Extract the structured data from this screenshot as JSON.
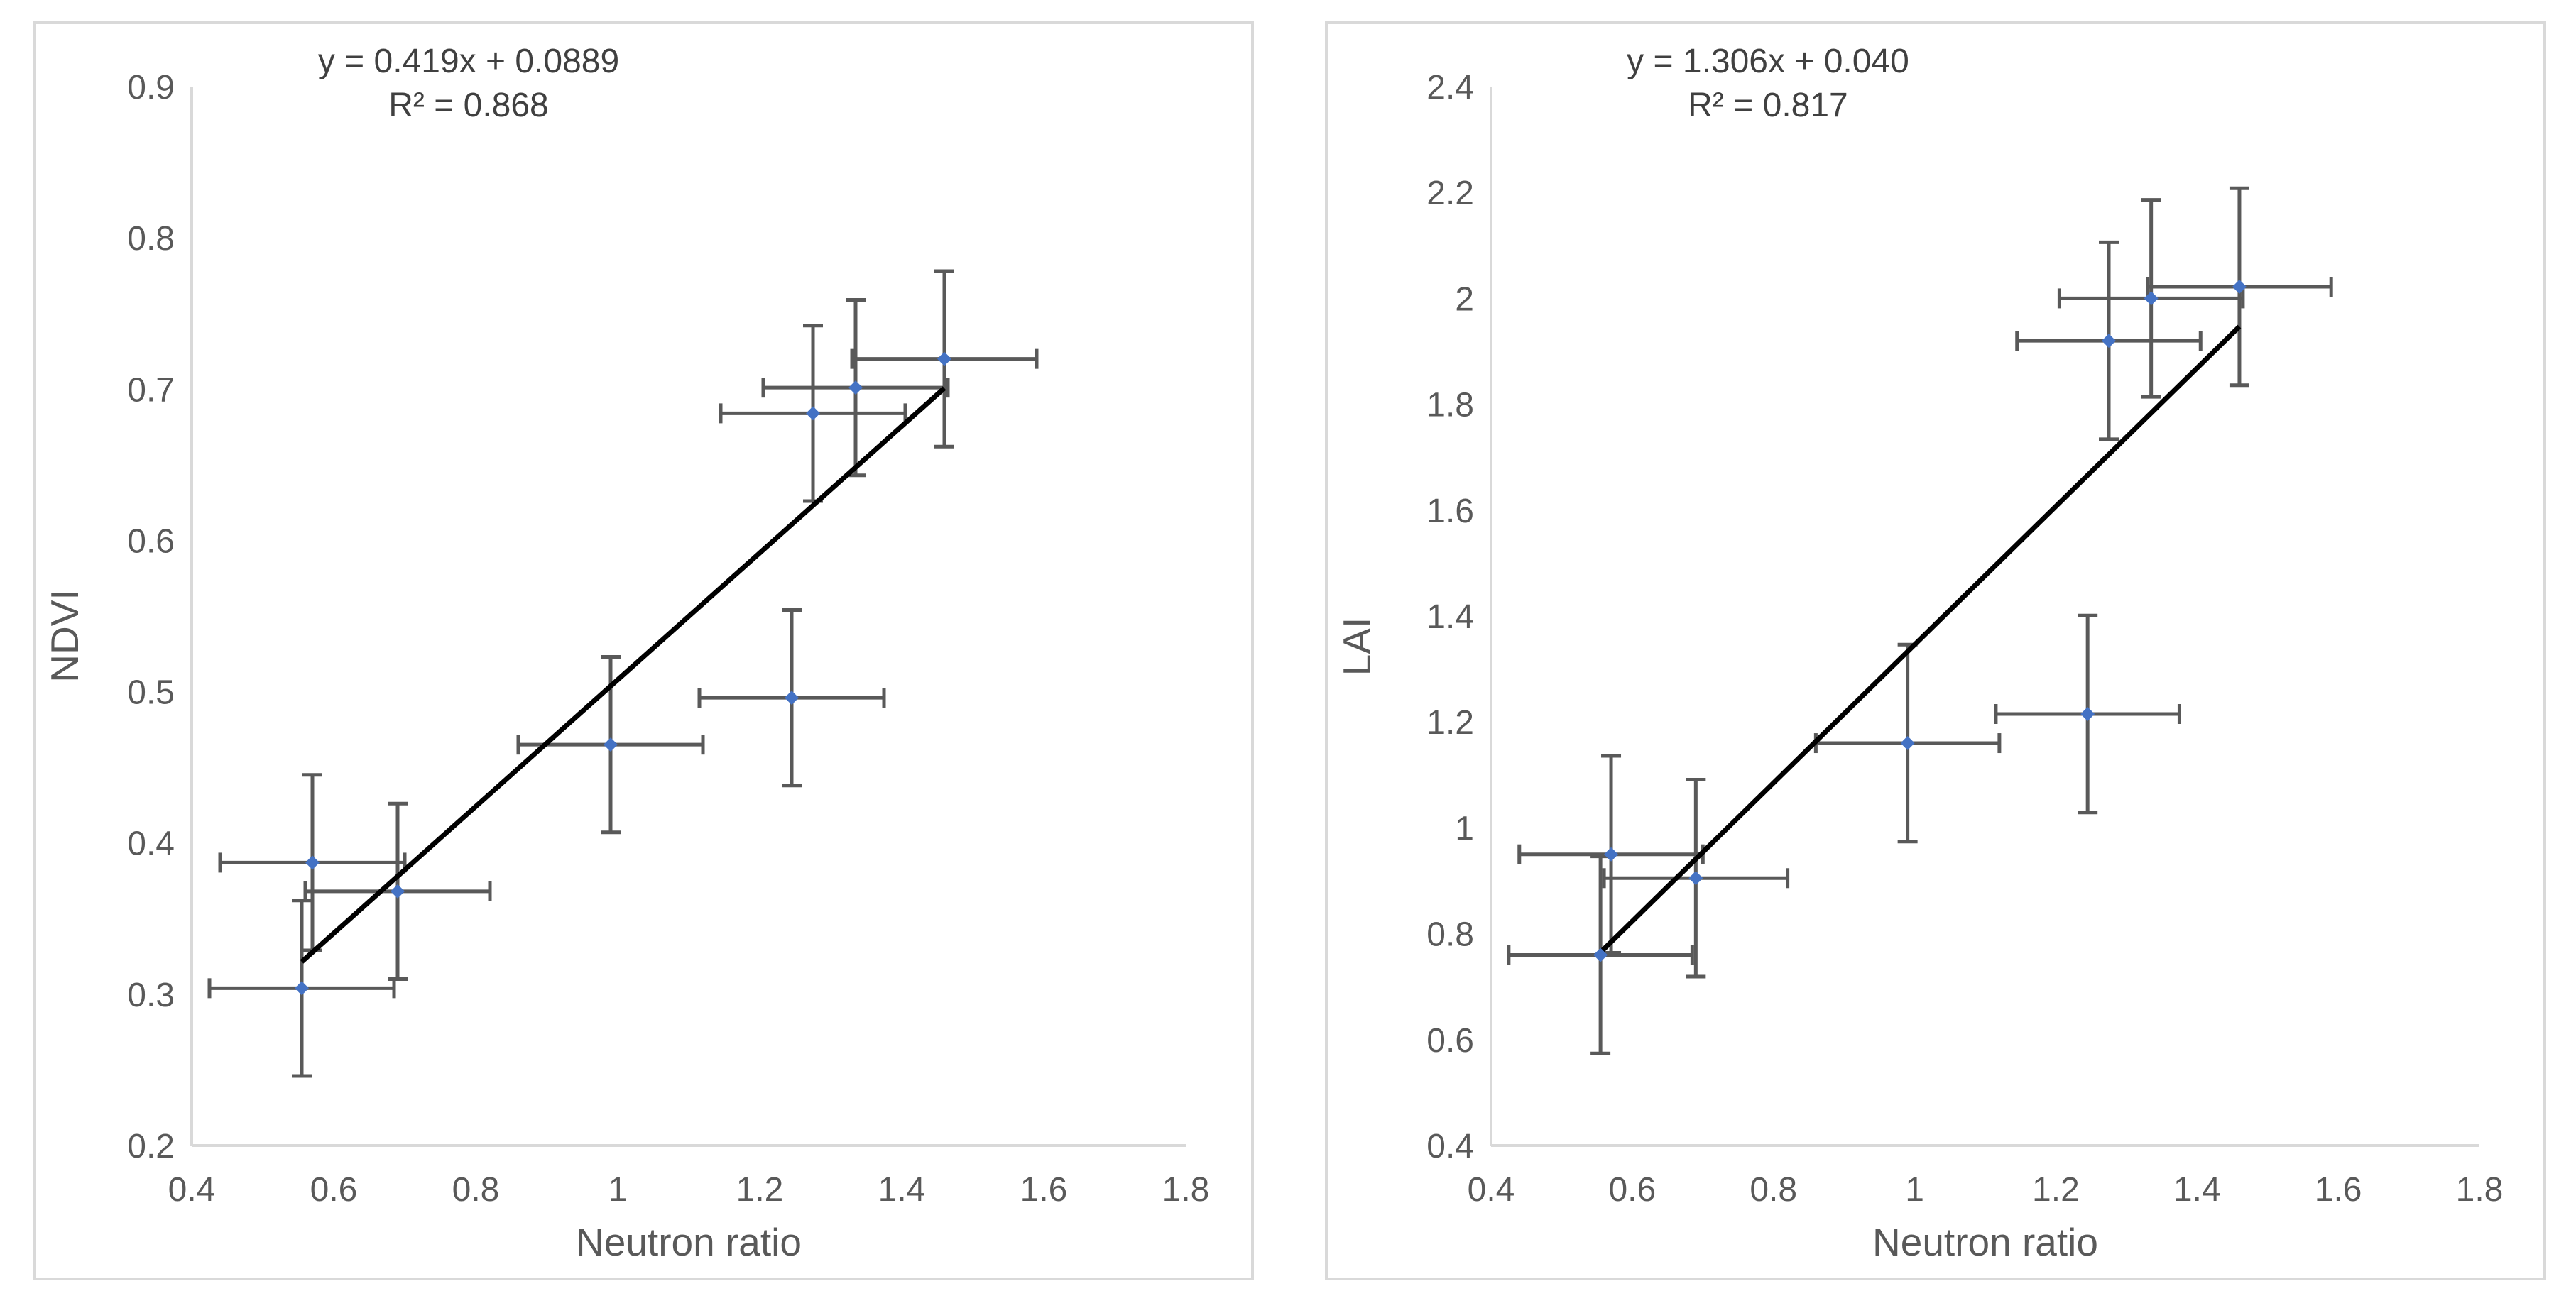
{
  "chart_data": [
    {
      "type": "scatter",
      "xlabel": "Neutron ratio",
      "ylabel": "NDVI",
      "xlim": [
        0.4,
        1.8
      ],
      "ylim": [
        0.2,
        0.9
      ],
      "xticks": [
        "0.4",
        "0.6",
        "0.8",
        "1",
        "1.2",
        "1.4",
        "1.6",
        "1.8"
      ],
      "yticks": [
        "0.2",
        "0.3",
        "0.4",
        "0.5",
        "0.6",
        "0.7",
        "0.8",
        "0.9"
      ],
      "xtick_values": [
        0.4,
        0.6,
        0.8,
        1.0,
        1.2,
        1.4,
        1.6,
        1.8
      ],
      "ytick_values": [
        0.2,
        0.3,
        0.4,
        0.5,
        0.6,
        0.7,
        0.8,
        0.9
      ],
      "equation": "y = 0.419x + 0.0889",
      "r2_label": "R² = 0.868",
      "trendline": {
        "slope": 0.419,
        "intercept": 0.0889,
        "x_range": [
          0.555,
          1.46
        ]
      },
      "marker_color": "#4472c4",
      "errorbar_color": "#595959",
      "trend_color": "#000000",
      "points": [
        {
          "x": 0.555,
          "y": 0.304,
          "xerr": 0.13,
          "yerr": 0.058
        },
        {
          "x": 0.57,
          "y": 0.387,
          "xerr": 0.13,
          "yerr": 0.058
        },
        {
          "x": 0.69,
          "y": 0.368,
          "xerr": 0.13,
          "yerr": 0.058
        },
        {
          "x": 0.99,
          "y": 0.465,
          "xerr": 0.13,
          "yerr": 0.058
        },
        {
          "x": 1.245,
          "y": 0.496,
          "xerr": 0.13,
          "yerr": 0.058
        },
        {
          "x": 1.275,
          "y": 0.684,
          "xerr": 0.13,
          "yerr": 0.058
        },
        {
          "x": 1.335,
          "y": 0.701,
          "xerr": 0.13,
          "yerr": 0.058
        },
        {
          "x": 1.46,
          "y": 0.72,
          "xerr": 0.13,
          "yerr": 0.058
        }
      ]
    },
    {
      "type": "scatter",
      "xlabel": "Neutron ratio",
      "ylabel": "LAI",
      "xlim": [
        0.4,
        1.8
      ],
      "ylim": [
        0.4,
        2.4
      ],
      "xticks": [
        "0.4",
        "0.6",
        "0.8",
        "1",
        "1.2",
        "1.4",
        "1.6",
        "1.8"
      ],
      "yticks": [
        "0.4",
        "0.6",
        "0.8",
        "1",
        "1.2",
        "1.4",
        "1.6",
        "1.8",
        "2",
        "2.2",
        "2.4"
      ],
      "xtick_values": [
        0.4,
        0.6,
        0.8,
        1.0,
        1.2,
        1.4,
        1.6,
        1.8
      ],
      "ytick_values": [
        0.4,
        0.6,
        0.8,
        1.0,
        1.2,
        1.4,
        1.6,
        1.8,
        2.0,
        2.2,
        2.4
      ],
      "equation": "y = 1.306x + 0.040",
      "r2_label": "R² = 0.817",
      "trendline": {
        "slope": 1.306,
        "intercept": 0.04,
        "x_range": [
          0.555,
          1.46
        ]
      },
      "marker_color": "#4472c4",
      "errorbar_color": "#595959",
      "trend_color": "#000000",
      "points": [
        {
          "x": 0.555,
          "y": 0.76,
          "xerr": 0.13,
          "yerr": 0.186
        },
        {
          "x": 0.57,
          "y": 0.95,
          "xerr": 0.13,
          "yerr": 0.186
        },
        {
          "x": 0.69,
          "y": 0.905,
          "xerr": 0.13,
          "yerr": 0.186
        },
        {
          "x": 0.99,
          "y": 1.16,
          "xerr": 0.13,
          "yerr": 0.186
        },
        {
          "x": 1.245,
          "y": 1.215,
          "xerr": 0.13,
          "yerr": 0.186
        },
        {
          "x": 1.275,
          "y": 1.92,
          "xerr": 0.13,
          "yerr": 0.186
        },
        {
          "x": 1.335,
          "y": 2.0,
          "xerr": 0.13,
          "yerr": 0.186
        },
        {
          "x": 1.46,
          "y": 2.022,
          "xerr": 0.13,
          "yerr": 0.186
        }
      ]
    }
  ]
}
